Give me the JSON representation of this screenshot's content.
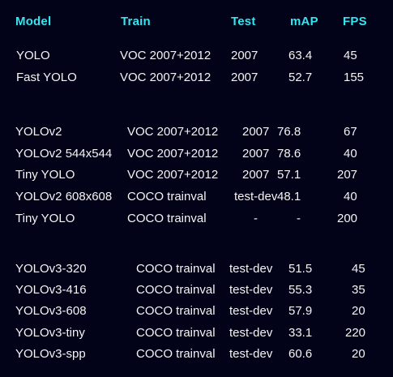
{
  "header": {
    "model": "Model",
    "train": "Train",
    "test": "Test",
    "map": "mAP",
    "fps": "FPS"
  },
  "groups": [
    {
      "rows": [
        {
          "model": "YOLO",
          "train": "VOC 2007+2012",
          "test": "2007",
          "map": "63.4",
          "fps": "45"
        },
        {
          "model": "Fast YOLO",
          "train": "VOC 2007+2012",
          "test": "2007",
          "map": "52.7",
          "fps": "155"
        }
      ]
    },
    {
      "rows": [
        {
          "model": "YOLOv2",
          "train": "VOC 2007+2012",
          "test": "2007",
          "map": "76.8",
          "fps": "67"
        },
        {
          "model": "YOLOv2 544x544",
          "train": "VOC 2007+2012",
          "test": "2007",
          "map": "78.6",
          "fps": "40"
        },
        {
          "model": "Tiny YOLO",
          "train": "VOC 2007+2012",
          "test": "2007",
          "map": "57.1",
          "fps": "207"
        },
        {
          "model": "YOLOv2 608x608",
          "train": "COCO trainval",
          "test": "test-dev",
          "map": "48.1",
          "fps": "40"
        },
        {
          "model": "Tiny YOLO",
          "train": "COCO trainval",
          "test": "-",
          "map": "-",
          "fps": "200"
        }
      ]
    },
    {
      "rows": [
        {
          "model": "YOLOv3-320",
          "train": "COCO trainval",
          "test": "test-dev",
          "map": "51.5",
          "fps": "45"
        },
        {
          "model": "YOLOv3-416",
          "train": "COCO trainval",
          "test": "test-dev",
          "map": "55.3",
          "fps": "35"
        },
        {
          "model": "YOLOv3-608",
          "train": "COCO trainval",
          "test": "test-dev",
          "map": "57.9",
          "fps": "20"
        },
        {
          "model": "YOLOv3-tiny",
          "train": "COCO trainval",
          "test": "test-dev",
          "map": "33.1",
          "fps": "220"
        },
        {
          "model": "YOLOv3-spp",
          "train": "COCO trainval",
          "test": "test-dev",
          "map": "60.6",
          "fps": "20"
        }
      ]
    }
  ],
  "colors": {
    "background": "#020218",
    "header": "#33e6f0",
    "text": "#f4f4f4"
  }
}
